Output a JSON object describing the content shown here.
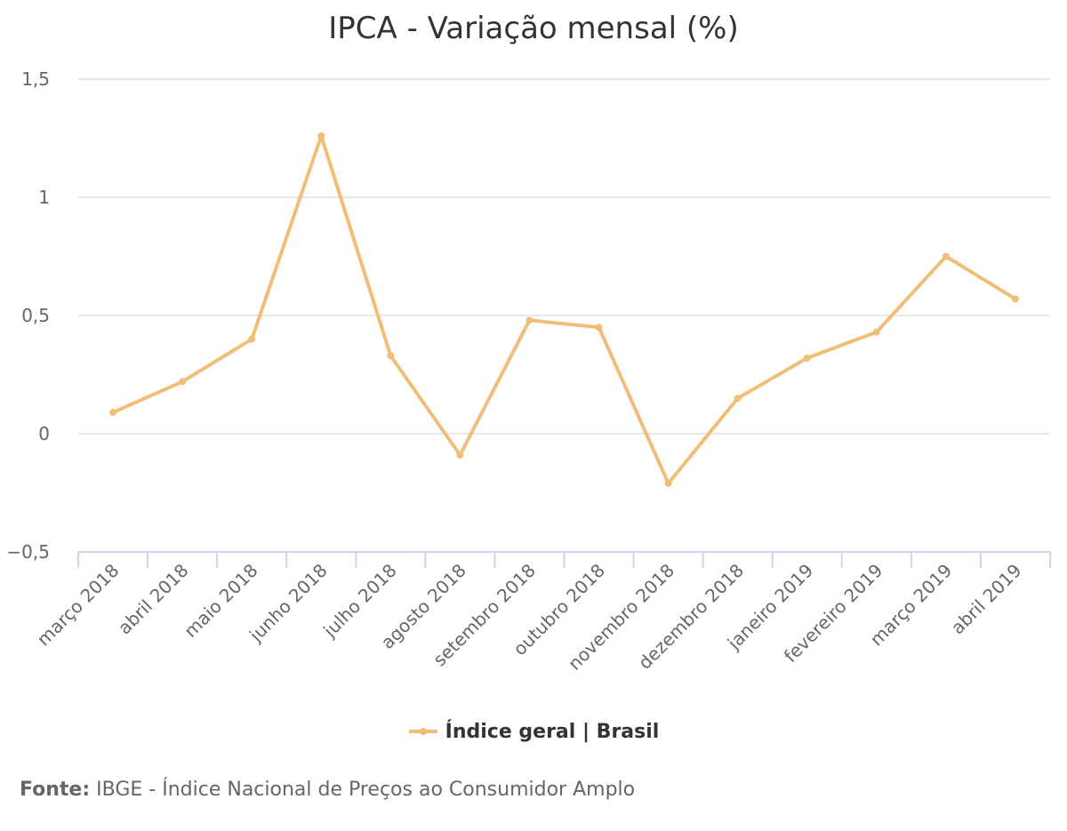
{
  "chart_data": {
    "type": "line",
    "title": "IPCA - Variação mensal (%)",
    "xlabel": "",
    "ylabel": "",
    "categories": [
      "março 2018",
      "abril 2018",
      "maio 2018",
      "junho 2018",
      "julho 2018",
      "agosto 2018",
      "setembro 2018",
      "outubro 2018",
      "novembro 2018",
      "dezembro 2018",
      "janeiro 2019",
      "fevereiro 2019",
      "março 2019",
      "abril 2019"
    ],
    "series": [
      {
        "name": "Índice geral | Brasil",
        "color": "#f0be78",
        "values": [
          0.09,
          0.22,
          0.4,
          1.26,
          0.33,
          -0.09,
          0.48,
          0.45,
          -0.21,
          0.15,
          0.32,
          0.43,
          0.75,
          0.57
        ]
      }
    ],
    "ylim": [
      -0.5,
      1.5
    ],
    "yticks": [
      -0.5,
      0,
      0.5,
      1,
      1.5
    ],
    "ytick_labels": [
      "−0,5",
      "0",
      "0,5",
      "1",
      "1,5"
    ],
    "grid": true,
    "legend_position": "bottom"
  },
  "source": {
    "prefix": "Fonte:",
    "text": "IBGE - Índice Nacional de Preços ao Consumidor Amplo"
  }
}
